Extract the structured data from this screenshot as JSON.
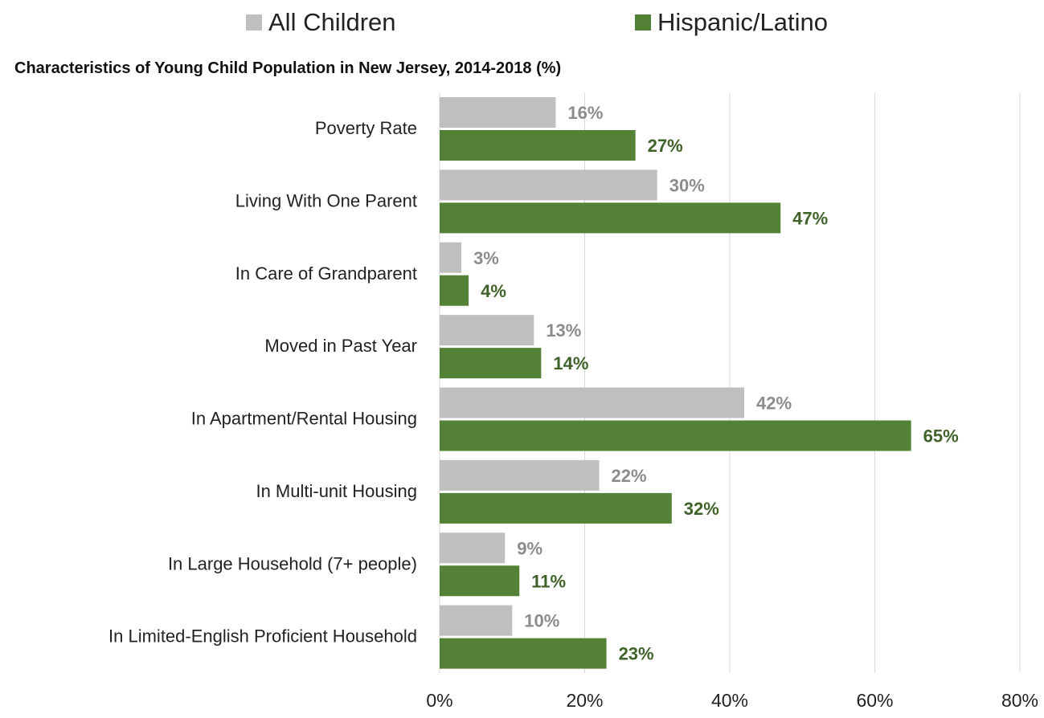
{
  "chart_data": {
    "type": "bar",
    "orientation": "horizontal",
    "title": "Characteristics of Young Child Population in New Jersey, 2014-2018 (%)",
    "categories": [
      "Poverty Rate",
      "Living With One Parent",
      "In Care of Grandparent",
      "Moved in Past Year",
      "In Apartment/Rental Housing",
      "In Multi-unit Housing",
      "In Large Household (7+ people)",
      "In Limited-English Proficient Household"
    ],
    "series": [
      {
        "name": "All Children",
        "color": "#bfbfbf",
        "label_color": "#8c8c8c",
        "values": [
          16,
          30,
          3,
          13,
          42,
          22,
          9,
          10
        ],
        "labels": [
          "16%",
          "30%",
          "3%",
          "13%",
          "42%",
          "22%",
          "9%",
          "10%"
        ]
      },
      {
        "name": "Hispanic/Latino",
        "color": "#538135",
        "label_color": "#3f6228",
        "values": [
          27,
          47,
          4,
          14,
          65,
          32,
          11,
          23
        ],
        "labels": [
          "27%",
          "47%",
          "4%",
          "14%",
          "65%",
          "32%",
          "11%",
          "23%"
        ]
      }
    ],
    "xlim": [
      0,
      80
    ],
    "xticks": [
      "0%",
      "20%",
      "40%",
      "60%",
      "80%"
    ],
    "grid": true,
    "legend_position": "top"
  }
}
